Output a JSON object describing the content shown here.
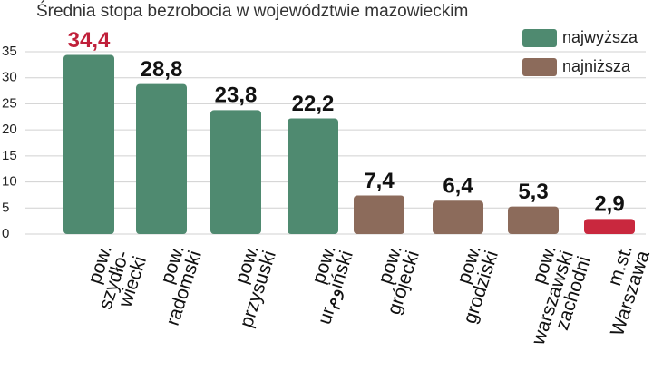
{
  "chart_data": {
    "type": "bar",
    "title": "Średnia stopa bezrobocia w województwie mazowieckim",
    "categories": [
      "pow.\nszydło-\nwiecki",
      "pow.\nradomski",
      "pow.\nprzysuski",
      "pow.\nurومiński",
      "pow.\ngrójecki",
      "pow.\ngrodziski",
      "pow.\nwarszawski\nzachodni",
      "m.st.\nWarszawa"
    ],
    "values": [
      34.4,
      28.8,
      23.8,
      22.2,
      7.4,
      6.4,
      5.3,
      2.9
    ],
    "value_labels": [
      "34,4",
      "28,8",
      "23,8",
      "22,2",
      "7,4",
      "6,4",
      "5,3",
      "2,9"
    ],
    "colors": [
      "#4f8a70",
      "#4f8a70",
      "#4f8a70",
      "#4f8a70",
      "#8c6b5b",
      "#8c6b5b",
      "#8c6b5b",
      "#c9283e"
    ],
    "value_label_colors": [
      "#c0203a",
      "#111111",
      "#111111",
      "#111111",
      "#111111",
      "#111111",
      "#111111",
      "#111111"
    ],
    "legend": [
      {
        "name": "najwyższa",
        "color": "#4f8a70"
      },
      {
        "name": "najniższa",
        "color": "#8c6b5b"
      }
    ],
    "ylim": [
      0,
      35
    ],
    "yticks": [
      0,
      5,
      10,
      15,
      20,
      25,
      30,
      35
    ],
    "grid": true
  }
}
